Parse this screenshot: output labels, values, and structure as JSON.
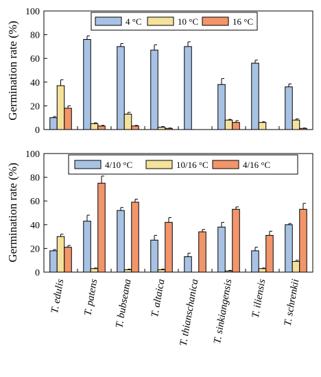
{
  "colors": {
    "series1": "#A8C2E4",
    "series2": "#F4E19A",
    "series3": "#F2956A",
    "stroke": "#000000"
  },
  "chart_data": [
    {
      "type": "bar",
      "ylabel": "Germination rate (%)",
      "ylim": [
        0,
        100
      ],
      "yticks": [
        0,
        20,
        40,
        60,
        80,
        100
      ],
      "legend_position": "top-center",
      "series": [
        {
          "name": "4 °C",
          "values": [
            10,
            76,
            70,
            67,
            70,
            38,
            56,
            36
          ],
          "errors": [
            1,
            3,
            2.5,
            4.5,
            4,
            5,
            2.5,
            2.5
          ]
        },
        {
          "name": "10 °C",
          "values": [
            37,
            5,
            13,
            2,
            0,
            8,
            6,
            8
          ],
          "errors": [
            5,
            0.7,
            1.5,
            0.5,
            0,
            0.6,
            0.5,
            1
          ]
        },
        {
          "name": "16 °C",
          "values": [
            18,
            3,
            3,
            1,
            0,
            6,
            0,
            1
          ],
          "errors": [
            2,
            0.5,
            0.5,
            0.3,
            0,
            1.5,
            0,
            0.3
          ]
        }
      ]
    },
    {
      "type": "bar",
      "ylabel": "Germination rate (%)",
      "ylim": [
        0,
        100
      ],
      "yticks": [
        0,
        20,
        40,
        60,
        80,
        100
      ],
      "legend_position": "top-center",
      "categories": [
        "T. edulis",
        "T. patens",
        "T. bubseana",
        "T. altaica",
        "T. thianschanica",
        "T. sinkiangensis",
        "T. iliensis",
        "T. schrenkii"
      ],
      "series": [
        {
          "name": "4/10 °C",
          "values": [
            18,
            43,
            52,
            27,
            13,
            38,
            18,
            40
          ],
          "errors": [
            1,
            5,
            2.5,
            4,
            3,
            4,
            3,
            1
          ]
        },
        {
          "name": "10/16 °C",
          "values": [
            30,
            3,
            2,
            2,
            0,
            1,
            3,
            9
          ],
          "errors": [
            2,
            0.5,
            0.5,
            0.5,
            0,
            0.5,
            0.5,
            1
          ]
        },
        {
          "name": "4/16 °C",
          "values": [
            21,
            75,
            59,
            42,
            34,
            53,
            31,
            53
          ],
          "errors": [
            1.5,
            6,
            2.5,
            4,
            2,
            2,
            3.5,
            5
          ]
        }
      ]
    }
  ]
}
